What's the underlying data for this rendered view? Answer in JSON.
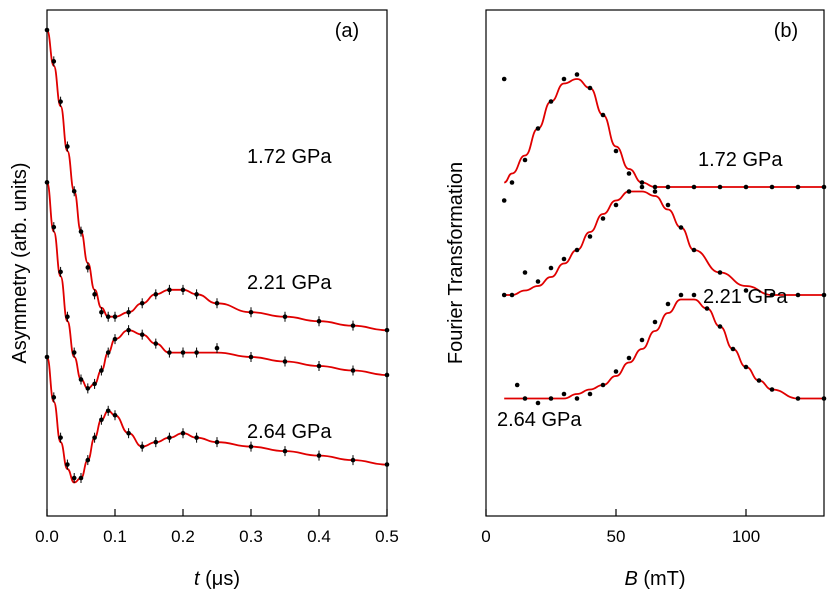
{
  "chart_data": [
    {
      "panel_label": "(a)",
      "type": "scatter",
      "xlabel_italic": "t",
      "xlabel_unit": " (μs)",
      "ylabel": "Asymmetry (arb. units)",
      "xlim": [
        0.0,
        0.5
      ],
      "xticks": [
        0.0,
        0.1,
        0.2,
        0.3,
        0.4,
        0.5
      ],
      "xtick_labels": [
        "0.0",
        "0.1",
        "0.2",
        "0.3",
        "0.4",
        "0.5"
      ],
      "grid": false,
      "fit_color": "#e00000",
      "series": [
        {
          "name": "1.72 GPa",
          "x": [
            0.0,
            0.01,
            0.02,
            0.03,
            0.04,
            0.05,
            0.06,
            0.07,
            0.08,
            0.09,
            0.1,
            0.12,
            0.14,
            0.16,
            0.18,
            0.2,
            0.22,
            0.25,
            0.3,
            0.35,
            0.4,
            0.45,
            0.5
          ],
          "y": [
            1.0,
            0.93,
            0.84,
            0.74,
            0.64,
            0.55,
            0.47,
            0.41,
            0.37,
            0.36,
            0.36,
            0.37,
            0.39,
            0.41,
            0.42,
            0.42,
            0.41,
            0.39,
            0.37,
            0.36,
            0.35,
            0.34,
            0.33
          ],
          "fit": [
            1.0,
            0.92,
            0.83,
            0.73,
            0.64,
            0.55,
            0.48,
            0.42,
            0.38,
            0.36,
            0.36,
            0.37,
            0.39,
            0.41,
            0.42,
            0.42,
            0.41,
            0.39,
            0.37,
            0.36,
            0.35,
            0.34,
            0.33
          ]
        },
        {
          "name": "2.21 GPa",
          "x": [
            0.0,
            0.01,
            0.02,
            0.03,
            0.04,
            0.05,
            0.06,
            0.07,
            0.08,
            0.09,
            0.1,
            0.12,
            0.14,
            0.16,
            0.18,
            0.2,
            0.22,
            0.25,
            0.3,
            0.35,
            0.4,
            0.45,
            0.5
          ],
          "y": [
            0.66,
            0.56,
            0.46,
            0.36,
            0.28,
            0.22,
            0.2,
            0.21,
            0.24,
            0.28,
            0.31,
            0.33,
            0.32,
            0.3,
            0.28,
            0.28,
            0.28,
            0.29,
            0.27,
            0.26,
            0.25,
            0.24,
            0.23
          ],
          "fit": [
            0.66,
            0.55,
            0.45,
            0.35,
            0.27,
            0.22,
            0.2,
            0.21,
            0.24,
            0.28,
            0.31,
            0.33,
            0.32,
            0.3,
            0.28,
            0.28,
            0.28,
            0.28,
            0.27,
            0.26,
            0.25,
            0.24,
            0.23
          ]
        },
        {
          "name": "2.64 GPa",
          "x": [
            0.0,
            0.01,
            0.02,
            0.03,
            0.04,
            0.05,
            0.06,
            0.07,
            0.08,
            0.09,
            0.1,
            0.12,
            0.14,
            0.16,
            0.18,
            0.2,
            0.22,
            0.25,
            0.3,
            0.35,
            0.4,
            0.45,
            0.5
          ],
          "y": [
            0.27,
            0.18,
            0.09,
            0.03,
            0.0,
            0.0,
            0.04,
            0.09,
            0.13,
            0.15,
            0.14,
            0.1,
            0.07,
            0.08,
            0.09,
            0.1,
            0.09,
            0.08,
            0.07,
            0.06,
            0.05,
            0.04,
            0.03
          ],
          "fit": [
            0.27,
            0.17,
            0.08,
            0.02,
            -0.01,
            0.0,
            0.04,
            0.09,
            0.13,
            0.15,
            0.14,
            0.1,
            0.07,
            0.08,
            0.09,
            0.1,
            0.09,
            0.08,
            0.07,
            0.06,
            0.05,
            0.04,
            0.03
          ]
        }
      ]
    },
    {
      "panel_label": "(b)",
      "type": "scatter",
      "xlabel_italic": "B",
      "xlabel_unit": " (mT)",
      "ylabel": "Fourier Transformation",
      "xlim": [
        0,
        130
      ],
      "xticks": [
        0,
        50,
        100
      ],
      "xtick_labels": [
        "0",
        "50",
        "100"
      ],
      "grid": false,
      "fit_color": "#e00000",
      "series": [
        {
          "name": "1.72 GPa",
          "x": [
            7,
            10,
            15,
            20,
            25,
            30,
            35,
            40,
            45,
            50,
            55,
            60,
            65,
            70,
            80,
            90,
            100,
            110,
            120,
            130
          ],
          "y": [
            0.98,
            0.75,
            0.8,
            0.87,
            0.93,
            0.98,
            0.99,
            0.96,
            0.9,
            0.82,
            0.77,
            0.75,
            0.74,
            0.74,
            0.74,
            0.74,
            0.74,
            0.74,
            0.74,
            0.74
          ],
          "fit": [
            0.75,
            0.77,
            0.81,
            0.87,
            0.93,
            0.97,
            0.98,
            0.96,
            0.9,
            0.83,
            0.78,
            0.75,
            0.74,
            0.74,
            0.74,
            0.74,
            0.74,
            0.74,
            0.74,
            0.74
          ]
        },
        {
          "name": "2.21 GPa",
          "x": [
            7,
            10,
            15,
            20,
            25,
            30,
            35,
            40,
            45,
            50,
            55,
            60,
            65,
            70,
            75,
            80,
            90,
            100,
            110,
            120,
            130
          ],
          "y": [
            0.71,
            0.5,
            0.55,
            0.53,
            0.56,
            0.58,
            0.6,
            0.63,
            0.67,
            0.7,
            0.73,
            0.74,
            0.73,
            0.7,
            0.65,
            0.6,
            0.55,
            0.51,
            0.5,
            0.5,
            0.5
          ],
          "fit": [
            0.5,
            0.5,
            0.51,
            0.52,
            0.54,
            0.57,
            0.6,
            0.64,
            0.68,
            0.71,
            0.73,
            0.73,
            0.72,
            0.69,
            0.65,
            0.6,
            0.55,
            0.52,
            0.5,
            0.5,
            0.5
          ]
        },
        {
          "name": "2.64 GPa",
          "x": [
            7,
            12,
            15,
            20,
            25,
            30,
            35,
            40,
            45,
            50,
            55,
            60,
            65,
            70,
            75,
            80,
            85,
            90,
            95,
            100,
            105,
            110,
            120,
            130
          ],
          "y": [
            0.5,
            0.3,
            0.27,
            0.26,
            0.27,
            0.28,
            0.27,
            0.28,
            0.3,
            0.33,
            0.36,
            0.4,
            0.44,
            0.48,
            0.5,
            0.5,
            0.47,
            0.43,
            0.38,
            0.34,
            0.31,
            0.29,
            0.27,
            0.27
          ],
          "fit": [
            0.27,
            0.27,
            0.27,
            0.27,
            0.27,
            0.27,
            0.28,
            0.29,
            0.3,
            0.32,
            0.35,
            0.38,
            0.42,
            0.46,
            0.49,
            0.49,
            0.47,
            0.43,
            0.38,
            0.34,
            0.31,
            0.29,
            0.27,
            0.27
          ]
        }
      ]
    }
  ]
}
